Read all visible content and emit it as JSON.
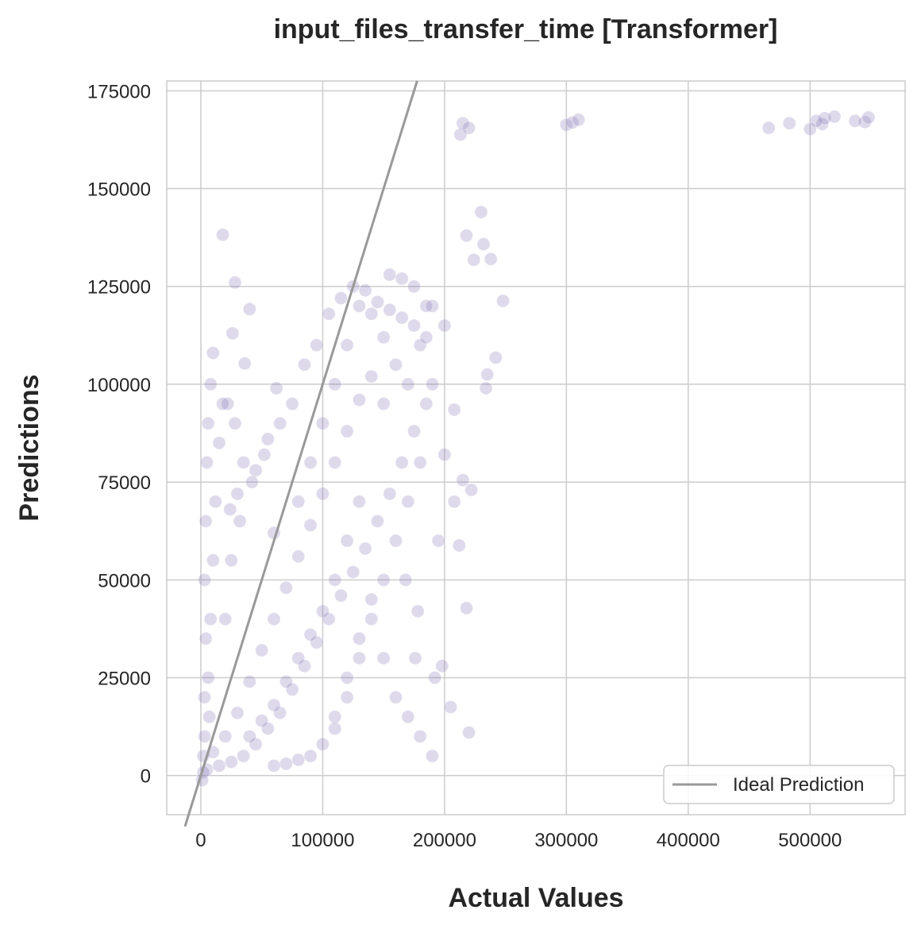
{
  "chart_data": {
    "type": "scatter",
    "title": "input_files_transfer_time [Transformer]",
    "xlabel": "Actual Values",
    "ylabel": "Predictions",
    "xlim": [
      -28000,
      578000
    ],
    "ylim": [
      -10000,
      177500
    ],
    "x_ticks": [
      0,
      100000,
      200000,
      300000,
      400000,
      500000
    ],
    "y_ticks": [
      0,
      25000,
      50000,
      75000,
      100000,
      125000,
      150000,
      175000
    ],
    "x_tick_labels": [
      "0",
      "100000",
      "200000",
      "300000",
      "400000",
      "500000"
    ],
    "y_tick_labels": [
      "0",
      "25000",
      "50000",
      "75000",
      "100000",
      "125000",
      "150000",
      "175000"
    ],
    "grid": true,
    "legend": {
      "position": "bottom-right",
      "entries": [
        {
          "label": "Ideal Prediction",
          "color": "#999999",
          "marker": "line"
        }
      ]
    },
    "point_color": "#8172b3",
    "point_opacity": 0.12,
    "ideal_line": {
      "slope": 1,
      "intercept": 0,
      "color": "#999999"
    },
    "series": [
      {
        "values": [
          [
            510000,
            166500
          ],
          [
            512000,
            168000
          ],
          [
            545000,
            167000
          ],
          [
            548000,
            168200
          ],
          [
            500000,
            165200
          ],
          [
            505000,
            167300
          ],
          [
            520000,
            168400
          ],
          [
            537000,
            167300
          ],
          [
            466000,
            165500
          ],
          [
            483000,
            166700
          ],
          [
            300000,
            166300
          ],
          [
            305000,
            166900
          ],
          [
            310000,
            167600
          ],
          [
            213000,
            163800
          ],
          [
            215000,
            166700
          ],
          [
            220000,
            165500
          ],
          [
            230000,
            144000
          ],
          [
            218000,
            138000
          ],
          [
            232000,
            135800
          ],
          [
            238000,
            132000
          ],
          [
            224000,
            131800
          ],
          [
            248000,
            121300
          ],
          [
            242000,
            106800
          ],
          [
            235000,
            102500
          ],
          [
            234000,
            99000
          ],
          [
            208000,
            93500
          ],
          [
            215000,
            75500
          ],
          [
            208000,
            70000
          ],
          [
            222000,
            73000
          ],
          [
            218000,
            42800
          ],
          [
            212000,
            58800
          ],
          [
            205000,
            17500
          ],
          [
            220000,
            11000
          ],
          [
            18000,
            138200
          ],
          [
            28000,
            126000
          ],
          [
            40000,
            119200
          ],
          [
            36000,
            105300
          ],
          [
            26000,
            113000
          ],
          [
            62000,
            99000
          ],
          [
            55000,
            86000
          ],
          [
            28000,
            90000
          ],
          [
            22000,
            95000
          ],
          [
            35000,
            80000
          ],
          [
            30000,
            72000
          ],
          [
            24000,
            68000
          ],
          [
            45000,
            78000
          ],
          [
            60000,
            62000
          ],
          [
            80000,
            70000
          ],
          [
            90000,
            80000
          ],
          [
            100000,
            90000
          ],
          [
            110000,
            100000
          ],
          [
            120000,
            110000
          ],
          [
            130000,
            120000
          ],
          [
            140000,
            118000
          ],
          [
            150000,
            112000
          ],
          [
            160000,
            105000
          ],
          [
            170000,
            100000
          ],
          [
            180000,
            110000
          ],
          [
            190000,
            120000
          ],
          [
            185000,
            95000
          ],
          [
            175000,
            88000
          ],
          [
            165000,
            80000
          ],
          [
            155000,
            72000
          ],
          [
            145000,
            65000
          ],
          [
            135000,
            58000
          ],
          [
            125000,
            52000
          ],
          [
            115000,
            46000
          ],
          [
            105000,
            40000
          ],
          [
            95000,
            34000
          ],
          [
            85000,
            28000
          ],
          [
            75000,
            22000
          ],
          [
            65000,
            16000
          ],
          [
            55000,
            12000
          ],
          [
            45000,
            8000
          ],
          [
            35000,
            5000
          ],
          [
            25000,
            3500
          ],
          [
            15000,
            2500
          ],
          [
            5000,
            1500
          ],
          [
            2000,
            800
          ],
          [
            1000,
            -1200
          ],
          [
            3000,
            20000
          ],
          [
            4000,
            35000
          ],
          [
            3000,
            50000
          ],
          [
            4000,
            65000
          ],
          [
            5000,
            80000
          ],
          [
            6000,
            90000
          ],
          [
            8000,
            100000
          ],
          [
            10000,
            108000
          ],
          [
            3000,
            10000
          ],
          [
            2000,
            5000
          ],
          [
            150000,
            30000
          ],
          [
            160000,
            20000
          ],
          [
            170000,
            15000
          ],
          [
            180000,
            10000
          ],
          [
            190000,
            5000
          ],
          [
            140000,
            45000
          ],
          [
            130000,
            35000
          ],
          [
            120000,
            25000
          ],
          [
            110000,
            15000
          ],
          [
            100000,
            8000
          ],
          [
            90000,
            5000
          ],
          [
            80000,
            4000
          ],
          [
            70000,
            3000
          ],
          [
            60000,
            2500
          ],
          [
            195000,
            60000
          ],
          [
            200000,
            82000
          ],
          [
            185000,
            120000
          ],
          [
            175000,
            125000
          ],
          [
            165000,
            127000
          ],
          [
            155000,
            128000
          ],
          [
            192000,
            25000
          ],
          [
            178000,
            42000
          ],
          [
            168000,
            50000
          ],
          [
            198000,
            28000
          ],
          [
            176000,
            30000
          ],
          [
            150000,
            95000
          ],
          [
            140000,
            102000
          ],
          [
            130000,
            96000
          ],
          [
            120000,
            88000
          ],
          [
            110000,
            80000
          ],
          [
            100000,
            72000
          ],
          [
            90000,
            64000
          ],
          [
            80000,
            56000
          ],
          [
            70000,
            48000
          ],
          [
            60000,
            40000
          ],
          [
            50000,
            32000
          ],
          [
            40000,
            24000
          ],
          [
            30000,
            16000
          ],
          [
            20000,
            10000
          ],
          [
            10000,
            6000
          ],
          [
            130000,
            70000
          ],
          [
            120000,
            60000
          ],
          [
            110000,
            50000
          ],
          [
            100000,
            42000
          ],
          [
            90000,
            36000
          ],
          [
            80000,
            30000
          ],
          [
            70000,
            24000
          ],
          [
            60000,
            18000
          ],
          [
            50000,
            14000
          ],
          [
            40000,
            10000
          ],
          [
            160000,
            60000
          ],
          [
            150000,
            50000
          ],
          [
            140000,
            40000
          ],
          [
            130000,
            30000
          ],
          [
            120000,
            20000
          ],
          [
            110000,
            12000
          ],
          [
            170000,
            70000
          ],
          [
            180000,
            80000
          ],
          [
            190000,
            100000
          ],
          [
            200000,
            115000
          ],
          [
            8000,
            40000
          ],
          [
            10000,
            55000
          ],
          [
            12000,
            70000
          ],
          [
            15000,
            85000
          ],
          [
            18000,
            95000
          ],
          [
            6000,
            25000
          ],
          [
            7000,
            15000
          ],
          [
            20000,
            40000
          ],
          [
            25000,
            55000
          ],
          [
            32000,
            65000
          ],
          [
            42000,
            75000
          ],
          [
            52000,
            82000
          ],
          [
            65000,
            90000
          ],
          [
            75000,
            95000
          ],
          [
            85000,
            105000
          ],
          [
            95000,
            110000
          ],
          [
            105000,
            118000
          ],
          [
            115000,
            122000
          ],
          [
            125000,
            125000
          ],
          [
            135000,
            124000
          ],
          [
            145000,
            121000
          ],
          [
            155000,
            119000
          ],
          [
            165000,
            117000
          ],
          [
            175000,
            115000
          ],
          [
            185000,
            112000
          ]
        ]
      }
    ]
  }
}
